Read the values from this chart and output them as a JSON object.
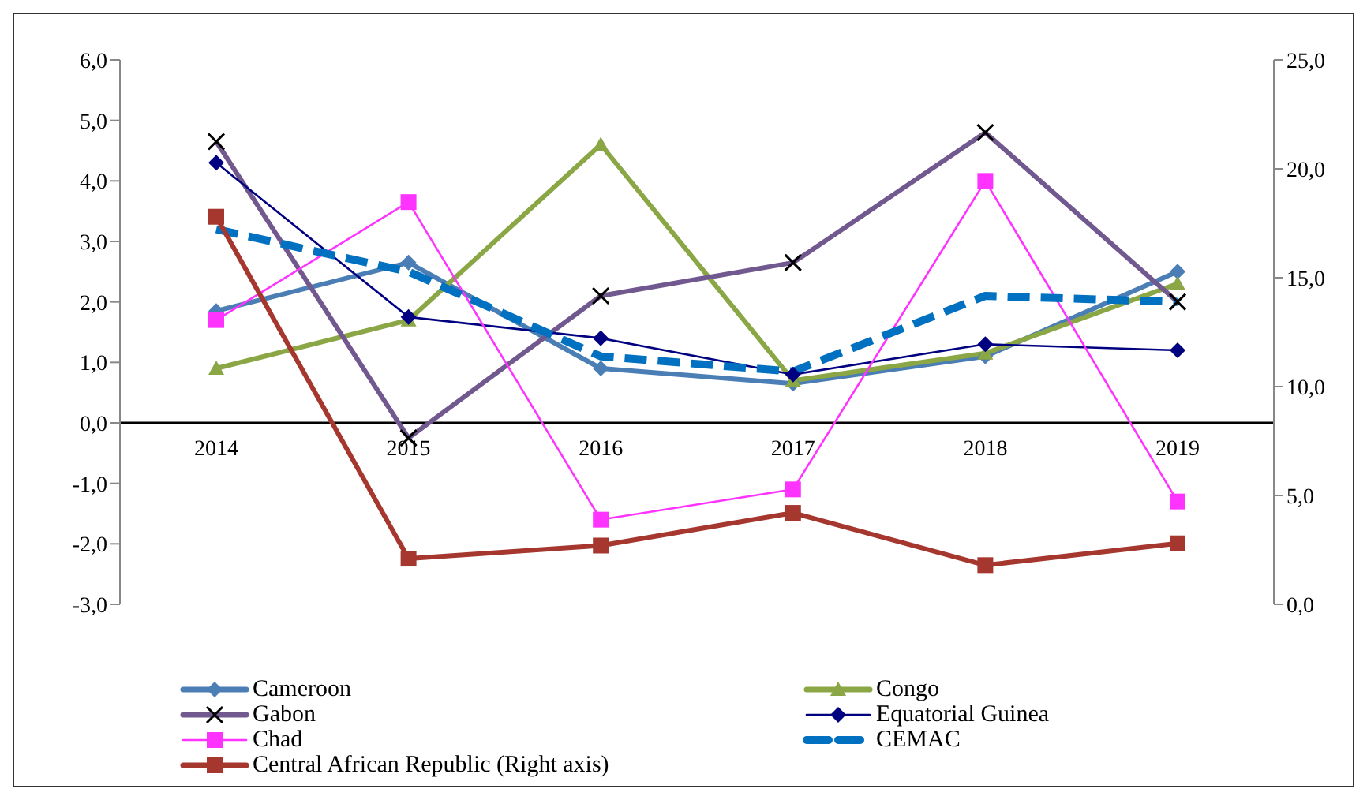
{
  "chart_data": {
    "type": "line",
    "categories": [
      "2014",
      "2015",
      "2016",
      "2017",
      "2018",
      "2019"
    ],
    "series": [
      {
        "name": "Cameroon",
        "color": "#4a7eb5",
        "marker": "diamond",
        "values": [
          1.85,
          2.65,
          0.9,
          0.65,
          1.1,
          2.5
        ]
      },
      {
        "name": "Congo",
        "color": "#8aa645",
        "marker": "triangle",
        "values": [
          0.9,
          1.7,
          4.6,
          0.7,
          1.15,
          2.3
        ]
      },
      {
        "name": "Gabon",
        "color": "#71588f",
        "marker": "cross",
        "values": [
          4.65,
          -0.25,
          2.1,
          2.65,
          4.8,
          2.0
        ]
      },
      {
        "name": "Equatorial Guinea",
        "color": "#000080",
        "marker": "diamond",
        "values": [
          4.3,
          1.75,
          1.4,
          0.8,
          1.3,
          1.2
        ]
      },
      {
        "name": "Chad",
        "color": "#ff33ff",
        "marker": "square",
        "values": [
          1.7,
          3.65,
          -1.6,
          -1.1,
          4.0,
          -1.3
        ]
      },
      {
        "name": "CEMAC",
        "color": "#0070c0",
        "marker": "none",
        "line_style": "dashed",
        "values": [
          3.2,
          2.5,
          1.1,
          0.85,
          2.1,
          2.0
        ]
      },
      {
        "name": "Central African Republic (Right axis)",
        "color": "#a5372f",
        "marker": "square",
        "axis": "y2",
        "values": [
          17.8,
          2.1,
          2.7,
          4.2,
          1.8,
          2.8
        ]
      }
    ],
    "ylim": [
      -3,
      6
    ],
    "yticks": [
      {
        "value": -3,
        "label": "-3,0"
      },
      {
        "value": -2,
        "label": "-2,0"
      },
      {
        "value": -1,
        "label": "-1,0"
      },
      {
        "value": 0,
        "label": "0,0"
      },
      {
        "value": 1,
        "label": "1,0"
      },
      {
        "value": 2,
        "label": "2,0"
      },
      {
        "value": 3,
        "label": "3,0"
      },
      {
        "value": 4,
        "label": "4,0"
      },
      {
        "value": 5,
        "label": "5,0"
      },
      {
        "value": 6,
        "label": "6,0"
      }
    ],
    "y2lim": [
      0,
      25
    ],
    "y2ticks": [
      {
        "value": 0,
        "label": "0,0"
      },
      {
        "value": 5,
        "label": "5,0"
      },
      {
        "value": 10,
        "label": "10,0"
      },
      {
        "value": 15,
        "label": "15,0"
      },
      {
        "value": 20,
        "label": "20,0"
      },
      {
        "value": 25,
        "label": "25,0"
      }
    ],
    "grid": false,
    "legend": "bottom"
  }
}
